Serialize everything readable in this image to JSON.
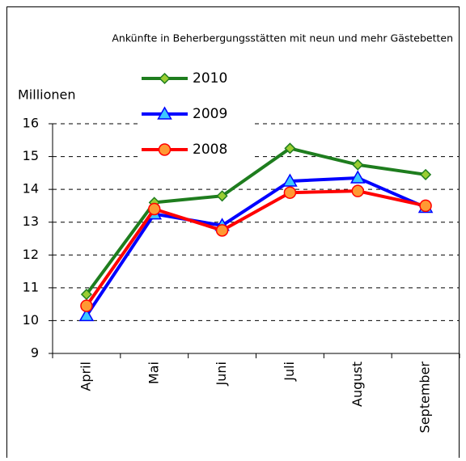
{
  "chart_data": {
    "type": "line",
    "title": "Ankünfte in Beherbergungsstätten mit neun und mehr Gästebetten",
    "y_label": "Millionen",
    "categories": [
      "April",
      "Mai",
      "Juni",
      "Juli",
      "August",
      "September"
    ],
    "series": [
      {
        "name": "2010",
        "color": "#1e7d1e",
        "marker": "diamond",
        "marker_color": "#9acd32",
        "values": [
          10.8,
          13.6,
          13.8,
          15.25,
          14.75,
          14.45
        ]
      },
      {
        "name": "2009",
        "color": "#0000ff",
        "marker": "triangle",
        "marker_color": "#3cc8ff",
        "values": [
          10.15,
          13.25,
          12.9,
          14.25,
          14.35,
          13.45
        ]
      },
      {
        "name": "2008",
        "color": "#ff0000",
        "marker": "circle",
        "marker_color": "#ff9933",
        "values": [
          10.45,
          13.4,
          12.75,
          13.9,
          13.95,
          13.5
        ]
      }
    ],
    "ylim": [
      9,
      16
    ],
    "yticks": [
      9,
      10,
      11,
      12,
      13,
      14,
      15,
      16
    ],
    "grid": true,
    "legend": "top"
  }
}
